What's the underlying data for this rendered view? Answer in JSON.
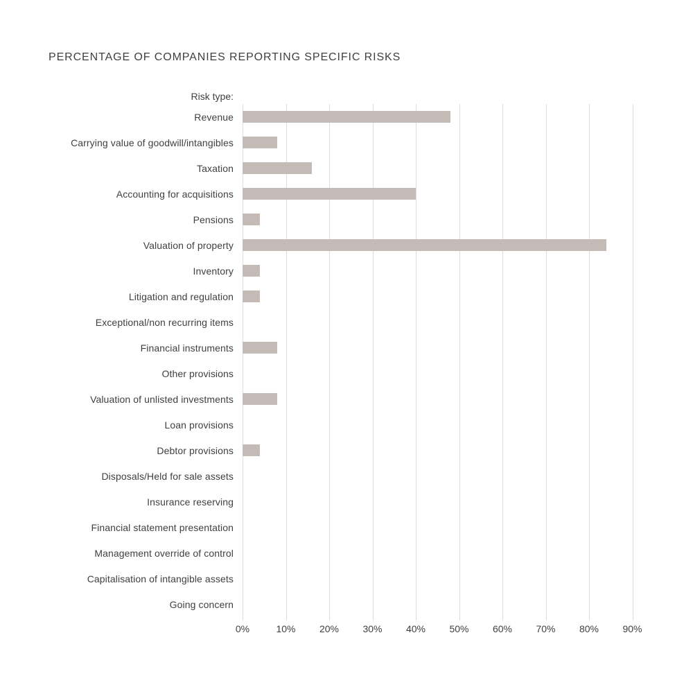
{
  "title": "PERCENTAGE OF COMPANIES REPORTING SPECIFIC RISKS",
  "axis_caption": "Risk type:",
  "colors": {
    "bar": "#c4bbb6",
    "gridline": "#dfdddc",
    "text": "#3f3f3f",
    "background": "#ffffff"
  },
  "chart_data": {
    "type": "bar",
    "orientation": "horizontal",
    "title": "PERCENTAGE OF COMPANIES REPORTING SPECIFIC RISKS",
    "group_caption": "Risk type:",
    "categories": [
      "Revenue",
      "Carrying value of goodwill/intangibles",
      "Taxation",
      "Accounting for acquisitions",
      "Pensions",
      "Valuation of property",
      "Inventory",
      "Litigation and regulation",
      "Exceptional/non recurring items",
      "Financial instruments",
      "Other provisions",
      "Valuation of unlisted investments",
      "Loan provisions",
      "Debtor provisions",
      "Disposals/Held for sale assets",
      "Insurance reserving",
      "Financial statement presentation",
      "Management override of control",
      "Capitalisation of intangible assets",
      "Going concern"
    ],
    "values": [
      48,
      8,
      16,
      40,
      4,
      84,
      4,
      4,
      0,
      8,
      0,
      8,
      0,
      4,
      0,
      0,
      0,
      0,
      0,
      0
    ],
    "unit": "%",
    "xlabel": "",
    "ylabel": "",
    "x_ticks": [
      "0%",
      "10%",
      "20%",
      "30%",
      "40%",
      "50%",
      "60%",
      "70%",
      "80%",
      "90%"
    ],
    "x_tick_values": [
      0,
      10,
      20,
      30,
      40,
      50,
      60,
      70,
      80,
      90
    ],
    "xlim": [
      0,
      100
    ],
    "grid": "vertical",
    "legend": "none"
  }
}
